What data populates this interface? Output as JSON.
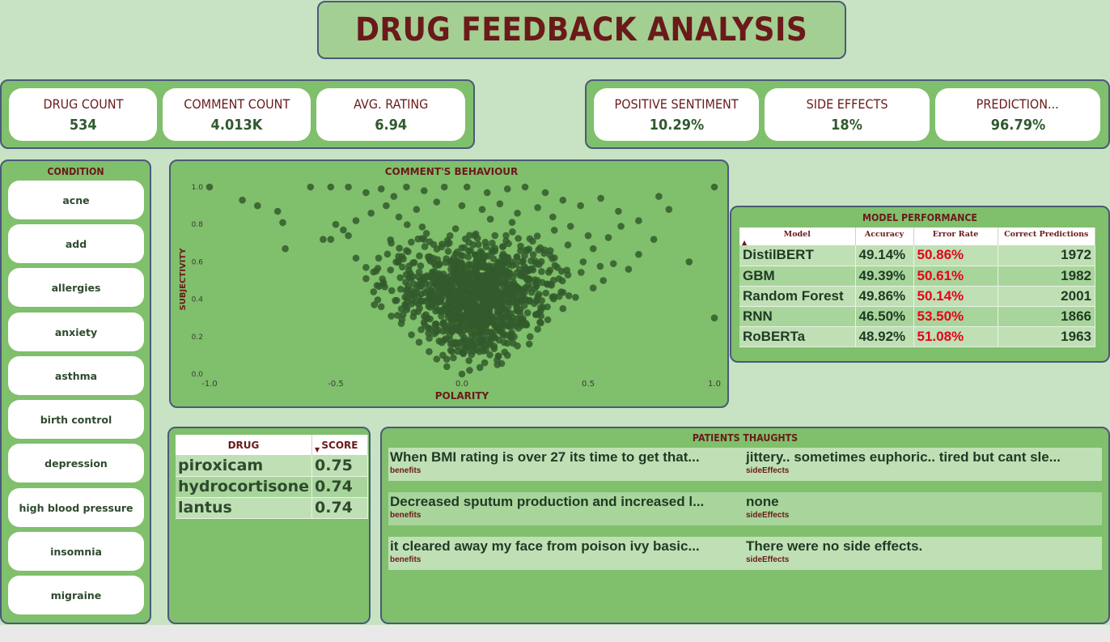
{
  "title": "DRUG FEEDBACK ANALYSIS",
  "kpis_left": [
    {
      "label": "DRUG COUNT",
      "value": "534"
    },
    {
      "label": "COMMENT COUNT",
      "value": "4.013K"
    },
    {
      "label": "AVG. RATING",
      "value": "6.94"
    }
  ],
  "kpis_right": [
    {
      "label": "POSITIVE SENTIMENT",
      "value": "10.29%"
    },
    {
      "label": "SIDE EFFECTS",
      "value": "18%"
    },
    {
      "label": "PREDICTION...",
      "value": "96.79%"
    }
  ],
  "condition": {
    "title": "CONDITION",
    "items": [
      "acne",
      "add",
      "allergies",
      "anxiety",
      "asthma",
      "birth control",
      "depression",
      "high blood pressure",
      "insomnia",
      "migraine"
    ]
  },
  "colors": {
    "background": "#c8e3c3",
    "panel": "#80bf6c",
    "title_text": "#6a1a1a",
    "value_text": "#2f5a2f",
    "scatter_point": "#335a2d",
    "error_rate": "#e8001a"
  },
  "chart_data": {
    "type": "scatter",
    "title": "COMMENT'S BEHAVIOUR",
    "xlabel": "POLARITY",
    "ylabel": "SUBJECTIVITY",
    "xlim": [
      -1.0,
      1.0
    ],
    "ylim": [
      0.0,
      1.0
    ],
    "x_ticks": [
      "-1.0",
      "-0.5",
      "0.0",
      "0.5",
      "1.0"
    ],
    "y_ticks": [
      "0.0",
      "0.2",
      "0.4",
      "0.6",
      "0.8",
      "1.0"
    ],
    "grid": false,
    "points": [
      [
        -1.0,
        1.0
      ],
      [
        1.0,
        1.0
      ],
      [
        -0.87,
        0.93
      ],
      [
        -0.81,
        0.9
      ],
      [
        -0.73,
        0.87
      ],
      [
        -0.71,
        0.81
      ],
      [
        -0.7,
        0.67
      ],
      [
        -0.55,
        0.72
      ],
      [
        -0.52,
        0.72
      ],
      [
        -0.5,
        0.8
      ],
      [
        -0.47,
        0.77
      ],
      [
        -0.45,
        0.74
      ],
      [
        -0.42,
        0.62
      ],
      [
        -0.38,
        0.57
      ],
      [
        -0.6,
        1.0
      ],
      [
        -0.52,
        1.0
      ],
      [
        -0.45,
        1.0
      ],
      [
        -0.38,
        0.97
      ],
      [
        -0.32,
        0.99
      ],
      [
        -0.27,
        0.95
      ],
      [
        -0.22,
        1.0
      ],
      [
        -0.15,
        0.98
      ],
      [
        -0.07,
        1.0
      ],
      [
        0.02,
        1.0
      ],
      [
        0.1,
        0.97
      ],
      [
        0.18,
        0.99
      ],
      [
        0.25,
        1.0
      ],
      [
        0.33,
        0.97
      ],
      [
        0.4,
        0.93
      ],
      [
        0.47,
        0.9
      ],
      [
        0.55,
        0.94
      ],
      [
        0.62,
        0.87
      ],
      [
        0.7,
        0.82
      ],
      [
        0.78,
        0.95
      ],
      [
        0.82,
        0.88
      ],
      [
        0.76,
        0.72
      ],
      [
        0.7,
        0.64
      ],
      [
        0.66,
        0.56
      ],
      [
        0.6,
        0.59
      ],
      [
        0.56,
        0.5
      ],
      [
        0.52,
        0.46
      ],
      [
        0.45,
        0.41
      ],
      [
        0.4,
        0.35
      ],
      [
        0.34,
        0.29
      ],
      [
        0.3,
        0.24
      ],
      [
        0.27,
        0.2
      ],
      [
        0.22,
        0.15
      ],
      [
        0.18,
        0.1
      ],
      [
        0.14,
        0.05
      ],
      [
        -0.32,
        0.36
      ],
      [
        -0.28,
        0.31
      ],
      [
        -0.24,
        0.27
      ],
      [
        -0.2,
        0.21
      ],
      [
        -0.17,
        0.17
      ],
      [
        -0.13,
        0.12
      ],
      [
        -0.1,
        0.08
      ],
      [
        -0.06,
        0.04
      ],
      [
        0.03,
        0.02
      ],
      [
        0.09,
        0.06
      ],
      [
        -0.35,
        0.44
      ],
      [
        -0.38,
        0.51
      ],
      [
        0.35,
        0.48
      ],
      [
        0.42,
        0.53
      ],
      [
        0.48,
        0.6
      ],
      [
        0.52,
        0.67
      ],
      [
        0.58,
        0.73
      ],
      [
        0.63,
        0.79
      ],
      [
        -0.42,
        0.82
      ],
      [
        -0.36,
        0.86
      ],
      [
        -0.3,
        0.9
      ],
      [
        -0.25,
        0.84
      ],
      [
        -0.18,
        0.88
      ],
      [
        -0.1,
        0.92
      ],
      [
        0.0,
        0.9
      ],
      [
        0.08,
        0.88
      ],
      [
        0.15,
        0.91
      ],
      [
        0.22,
        0.86
      ],
      [
        0.3,
        0.89
      ],
      [
        0.36,
        0.84
      ],
      [
        0.43,
        0.79
      ],
      [
        0.5,
        0.74
      ],
      [
        -0.28,
        0.7
      ],
      [
        -0.22,
        0.66
      ],
      [
        -0.15,
        0.72
      ],
      [
        -0.08,
        0.68
      ],
      [
        0.05,
        0.74
      ],
      [
        0.12,
        0.7
      ],
      [
        0.2,
        0.76
      ],
      [
        0.28,
        0.71
      ],
      [
        0.35,
        0.66
      ],
      [
        0.42,
        0.69
      ],
      [
        -0.33,
        0.62
      ],
      [
        0.0,
        0.0
      ],
      [
        1.0,
        0.3
      ],
      [
        0.9,
        0.6
      ]
    ],
    "dense_cluster": {
      "x_center": 0.05,
      "y_center": 0.42,
      "description": "dense concentration around polarity 0 and subjectivity 0.2–0.8"
    }
  },
  "model_performance": {
    "title": "MODEL PERFORMANCE",
    "columns": [
      "Model",
      "Accuracy",
      "Error Rate",
      "Correct Predictions"
    ],
    "rows": [
      {
        "model": "DistilBERT",
        "accuracy": "49.14%",
        "error": "50.86%",
        "correct": "1972"
      },
      {
        "model": "GBM",
        "accuracy": "49.39%",
        "error": "50.61%",
        "correct": "1982"
      },
      {
        "model": "Random Forest",
        "accuracy": "49.86%",
        "error": "50.14%",
        "correct": "2001"
      },
      {
        "model": "RNN",
        "accuracy": "46.50%",
        "error": "53.50%",
        "correct": "1866"
      },
      {
        "model": "RoBERTa",
        "accuracy": "48.92%",
        "error": "51.08%",
        "correct": "1963"
      }
    ]
  },
  "drug_scores": {
    "columns": [
      "DRUG",
      "SCORE"
    ],
    "rows": [
      {
        "drug": "piroxicam",
        "score": "0.75"
      },
      {
        "drug": "hydrocortisone",
        "score": "0.74"
      },
      {
        "drug": "lantus",
        "score": "0.74"
      }
    ]
  },
  "patients_thoughts": {
    "title": "PATIENTS THAUGHTS",
    "rows": [
      {
        "left": {
          "text": "When BMI rating is over 27 its time to get that...",
          "category": "benefits"
        },
        "right": {
          "text": "jittery.. sometimes euphoric.. tired but cant sle...",
          "category": "sideEffects"
        }
      },
      {
        "left": {
          "text": "Decreased sputum production and increased l...",
          "category": "benefits"
        },
        "right": {
          "text": "none",
          "category": "sideEffects"
        }
      },
      {
        "left": {
          "text": "it cleared away my face from poison ivy basic...",
          "category": "benefits"
        },
        "right": {
          "text": "There were no side effects.",
          "category": "sideEffects"
        }
      }
    ]
  }
}
